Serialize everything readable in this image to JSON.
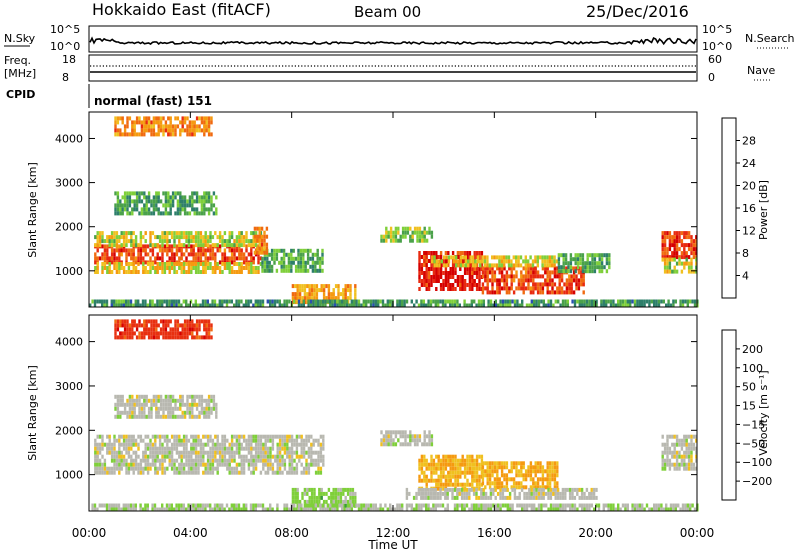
{
  "header": {
    "station": "Hokkaido East (fitACF)",
    "beam": "Beam 00",
    "date": "25/Dec/2016"
  },
  "nsky": {
    "label": "N.Sky",
    "ticks": [
      "10^5",
      "10^0"
    ],
    "right_ticks": [
      "10^5",
      "10^0"
    ],
    "right_label": "N.Search"
  },
  "freq": {
    "label_line1": "Freq.",
    "label_line2": "[MHz]",
    "ticks": [
      "18",
      "8"
    ],
    "right_ticks": [
      "60",
      "0"
    ],
    "right_label": "Nave"
  },
  "cpid": {
    "label": "CPID",
    "text": "normal (fast) 151"
  },
  "x_axis": {
    "label": "Time UT",
    "ticks": [
      "00:00",
      "04:00",
      "08:00",
      "12:00",
      "16:00",
      "20:00",
      "00:00"
    ]
  },
  "colors": {
    "power_scale": [
      "#1a1aff",
      "#2a4fb0",
      "#2e7f6a",
      "#4aa14a",
      "#7fcf3a",
      "#f0c020",
      "#f59a10",
      "#f06a10",
      "#e82a10",
      "#d50000"
    ],
    "velocity_scale": [
      "#1a1aa0",
      "#1a40c0",
      "#2a6a5a",
      "#3a9a3a",
      "#7fcf3a",
      "#b8b8b0",
      "#f0c020",
      "#f59a10",
      "#f06a10",
      "#e83010",
      "#d50000"
    ],
    "gray": "#b8b8b0"
  },
  "chart_data": [
    {
      "type": "heatmap",
      "name": "power",
      "ylabel": "Slant Range [km]",
      "xlabel": "",
      "x_range_hours": [
        0,
        24
      ],
      "ylim": [
        180,
        4600
      ],
      "yticks": [
        "1000",
        "2000",
        "3000",
        "4000"
      ],
      "colorbar": {
        "label": "Power [dB]",
        "ticks": [
          "4",
          "8",
          "12",
          "16",
          "20",
          "24",
          "28"
        ],
        "range": [
          0,
          32
        ]
      },
      "regions": [
        {
          "t0": 0.2,
          "t1": 6.8,
          "r0": 1200,
          "r1": 1600,
          "v": 26
        },
        {
          "t0": 0.2,
          "t1": 6.8,
          "r0": 1000,
          "r1": 1200,
          "v": 18
        },
        {
          "t0": 0.2,
          "t1": 6.8,
          "r0": 1600,
          "r1": 1900,
          "v": 16
        },
        {
          "t0": 1.0,
          "t1": 5.0,
          "r0": 2300,
          "r1": 2800,
          "v": 11
        },
        {
          "t0": 1.0,
          "t1": 4.8,
          "r0": 4100,
          "r1": 4500,
          "v": 22
        },
        {
          "t0": 6.8,
          "t1": 9.2,
          "r0": 1000,
          "r1": 1500,
          "v": 12
        },
        {
          "t0": 6.5,
          "t1": 7.0,
          "r0": 1400,
          "r1": 2000,
          "v": 22
        },
        {
          "t0": 8.0,
          "t1": 10.5,
          "r0": 300,
          "r1": 700,
          "v": 20
        },
        {
          "t0": 11.5,
          "t1": 13.5,
          "r0": 1700,
          "r1": 2000,
          "v": 14
        },
        {
          "t0": 13.0,
          "t1": 15.5,
          "r0": 550,
          "r1": 1450,
          "v": 29
        },
        {
          "t0": 15.5,
          "t1": 19.5,
          "r0": 500,
          "r1": 1100,
          "v": 26
        },
        {
          "t0": 13.5,
          "t1": 18.5,
          "r0": 1100,
          "r1": 1350,
          "v": 18
        },
        {
          "t0": 18.5,
          "t1": 20.5,
          "r0": 1000,
          "r1": 1400,
          "v": 12
        },
        {
          "t0": 22.6,
          "t1": 24.0,
          "r0": 1300,
          "r1": 1900,
          "v": 27
        },
        {
          "t0": 22.6,
          "t1": 24.0,
          "r0": 1000,
          "r1": 1300,
          "v": 16
        },
        {
          "t0": 0.0,
          "t1": 24.0,
          "r0": 200,
          "r1": 350,
          "v": 10
        }
      ]
    },
    {
      "type": "heatmap",
      "name": "velocity",
      "ylabel": "Slant Range [km]",
      "xlabel": "Time UT",
      "x_range_hours": [
        0,
        24
      ],
      "ylim": [
        180,
        4600
      ],
      "yticks": [
        "1000",
        "2000",
        "3000",
        "4000"
      ],
      "colorbar": {
        "label": "Velocity [m s⁻¹]",
        "ticks": [
          "200",
          "100",
          "50",
          "15",
          "−15",
          "−50",
          "−100",
          "−200"
        ],
        "range": [
          -250,
          250
        ]
      },
      "regions": [
        {
          "t0": 0.2,
          "t1": 9.2,
          "r0": 1000,
          "r1": 1900,
          "v": 0
        },
        {
          "t0": 1.0,
          "t1": 5.0,
          "r0": 2300,
          "r1": 2800,
          "v": 0
        },
        {
          "t0": 1.0,
          "t1": 4.8,
          "r0": 4100,
          "r1": 4500,
          "v": -180
        },
        {
          "t0": 8.0,
          "t1": 10.5,
          "r0": 300,
          "r1": 700,
          "v": 40
        },
        {
          "t0": 11.5,
          "t1": 13.5,
          "r0": 1700,
          "r1": 2000,
          "v": 0
        },
        {
          "t0": 13.0,
          "t1": 15.5,
          "r0": 700,
          "r1": 1450,
          "v": -60
        },
        {
          "t0": 15.5,
          "t1": 18.5,
          "r0": 700,
          "r1": 1300,
          "v": -70
        },
        {
          "t0": 12.5,
          "t1": 20.0,
          "r0": 500,
          "r1": 700,
          "v": 0
        },
        {
          "t0": 22.6,
          "t1": 24.0,
          "r0": 1100,
          "r1": 1900,
          "v": 0
        },
        {
          "t0": 0.0,
          "t1": 24.0,
          "r0": 200,
          "r1": 350,
          "v": 20
        }
      ]
    }
  ]
}
